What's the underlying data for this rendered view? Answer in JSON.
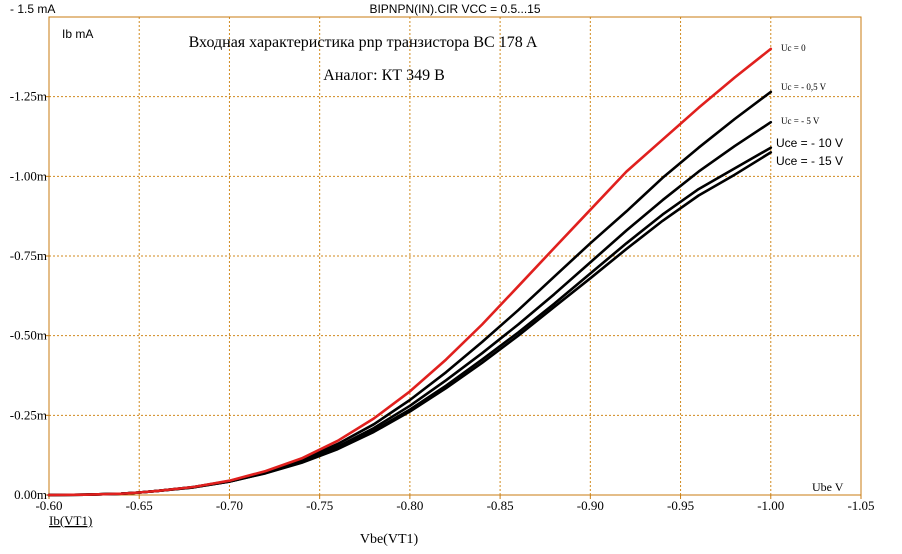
{
  "header": {
    "circuit_title": "BIPNPN(IN).CIR VCC = 0.5...15",
    "top_value": "- 1.5 mA"
  },
  "chart_data": {
    "type": "line",
    "title": "Входная характеристика pnp транзистора BC 178 A",
    "subtitle": "Аналог: КТ 349 В",
    "xlabel": "Vbe(VT1)",
    "ylabel": "Ib(VT1)",
    "xunit_label": "Ube V",
    "yunit_label": "Ib mA",
    "xlim": [
      -0.6,
      -1.05
    ],
    "ylim": [
      0,
      -1.5
    ],
    "x_ticks": [
      -0.6,
      -0.65,
      -0.7,
      -0.75,
      -0.8,
      -0.85,
      -0.9,
      -0.95,
      -1.0,
      -1.05
    ],
    "x_tick_labels": [
      "-0.60",
      "-0.65",
      "-0.70",
      "-0.75",
      "-0.80",
      "-0.85",
      "-0.90",
      "-0.95",
      "-1.00",
      "-1.05"
    ],
    "y_ticks": [
      0,
      -0.25,
      -0.5,
      -0.75,
      -1.0,
      -1.25
    ],
    "y_tick_labels": [
      "0.00m",
      "-0.25m",
      "-0.50m",
      "-0.75m",
      "-1.00m",
      "-1.25m"
    ],
    "grid": true,
    "grid_color": "#d08a1e",
    "axes_color": "#c87b10",
    "x": [
      -0.6,
      -0.62,
      -0.64,
      -0.65,
      -0.66,
      -0.68,
      -0.7,
      -0.72,
      -0.74,
      -0.76,
      -0.78,
      -0.8,
      -0.82,
      -0.84,
      -0.86,
      -0.88,
      -0.9,
      -0.92,
      -0.94,
      -0.96,
      -0.98,
      -1.0
    ],
    "series": [
      {
        "name": "Uc = 0",
        "color": "#e0201e",
        "values": [
          0,
          -0.001,
          -0.004,
          -0.008,
          -0.013,
          -0.025,
          -0.045,
          -0.075,
          -0.115,
          -0.17,
          -0.24,
          -0.325,
          -0.425,
          -0.535,
          -0.655,
          -0.775,
          -0.895,
          -1.015,
          -1.115,
          -1.215,
          -1.31,
          -1.4
        ]
      },
      {
        "name": "Uc = - 0,5 V",
        "color": "#000000",
        "values": [
          0,
          -0.001,
          -0.004,
          -0.008,
          -0.013,
          -0.025,
          -0.044,
          -0.073,
          -0.11,
          -0.16,
          -0.222,
          -0.298,
          -0.385,
          -0.48,
          -0.58,
          -0.685,
          -0.79,
          -0.89,
          -0.995,
          -1.09,
          -1.18,
          -1.265
        ]
      },
      {
        "name": "Uc = - 5 V",
        "color": "#000000",
        "values": [
          0,
          -0.001,
          -0.004,
          -0.008,
          -0.013,
          -0.025,
          -0.043,
          -0.071,
          -0.106,
          -0.152,
          -0.21,
          -0.28,
          -0.36,
          -0.445,
          -0.535,
          -0.63,
          -0.73,
          -0.83,
          -0.925,
          -1.015,
          -1.095,
          -1.17
        ]
      },
      {
        "name": "Uce = - 10 V",
        "color": "#000000",
        "values": [
          0,
          -0.001,
          -0.004,
          -0.008,
          -0.013,
          -0.024,
          -0.042,
          -0.069,
          -0.103,
          -0.147,
          -0.202,
          -0.268,
          -0.343,
          -0.425,
          -0.51,
          -0.6,
          -0.695,
          -0.79,
          -0.88,
          -0.96,
          -1.025,
          -1.09
        ]
      },
      {
        "name": "Uce = - 15 V",
        "color": "#000000",
        "values": [
          0,
          -0.001,
          -0.004,
          -0.008,
          -0.013,
          -0.024,
          -0.042,
          -0.068,
          -0.101,
          -0.144,
          -0.198,
          -0.262,
          -0.335,
          -0.415,
          -0.5,
          -0.59,
          -0.68,
          -0.772,
          -0.86,
          -0.94,
          -1.005,
          -1.075
        ]
      }
    ]
  }
}
